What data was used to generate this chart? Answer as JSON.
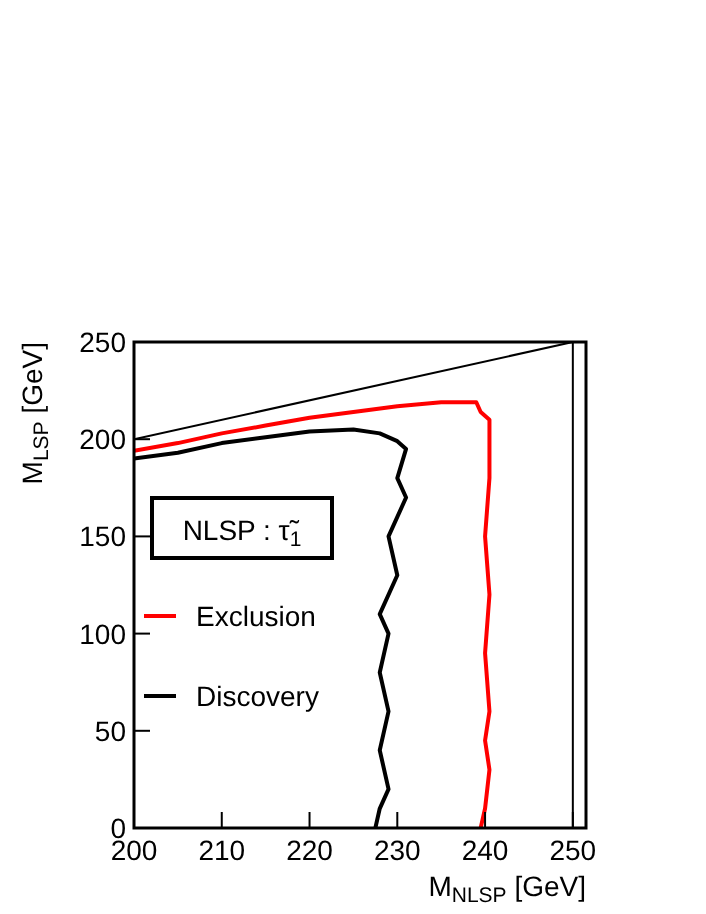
{
  "chart_data": {
    "type": "line",
    "xlabel": "M$_{NLSP}$ [GeV]",
    "ylabel": "M$_{LSP}$ [GeV]",
    "xlim": [
      200,
      251.5
    ],
    "ylim": [
      0,
      250
    ],
    "xticks": [
      200,
      210,
      220,
      230,
      240,
      250
    ],
    "yticks": [
      0,
      50,
      100,
      150,
      200,
      250
    ],
    "legend": "left",
    "grid": false,
    "marker": "none",
    "line_style": "solid",
    "annotations": [
      "NLSP : τ̃$_{1}$"
    ],
    "ref_lines": [
      {
        "axis": "x",
        "value": 250,
        "color": "#000000"
      }
    ],
    "series": [
      {
        "color": "#000000",
        "x": [
          200,
          250
        ],
        "values": [
          200,
          250
        ]
      },
      {
        "name": "Exclusion",
        "color": "#ff0000",
        "x": [
          200,
          205,
          210,
          215,
          220,
          225,
          230,
          235,
          239,
          239.5,
          240.5,
          240.5,
          240,
          240.5,
          240,
          240.5,
          240,
          240.5,
          240,
          239.5
        ],
        "values": [
          194,
          198,
          203,
          207,
          211,
          214,
          217,
          219,
          219,
          214,
          210,
          180,
          150,
          120,
          90,
          60,
          45,
          30,
          10,
          0
        ]
      },
      {
        "name": "Discovery",
        "color": "#000000",
        "x": [
          200,
          205,
          210,
          215,
          220,
          225,
          228,
          230,
          231,
          230,
          231,
          229,
          230,
          228,
          229,
          228,
          229,
          228,
          229,
          228,
          227.5
        ],
        "values": [
          190,
          193,
          198,
          201,
          204,
          205,
          203,
          199,
          195,
          180,
          170,
          150,
          130,
          110,
          100,
          80,
          60,
          40,
          20,
          10,
          0
        ]
      }
    ]
  }
}
